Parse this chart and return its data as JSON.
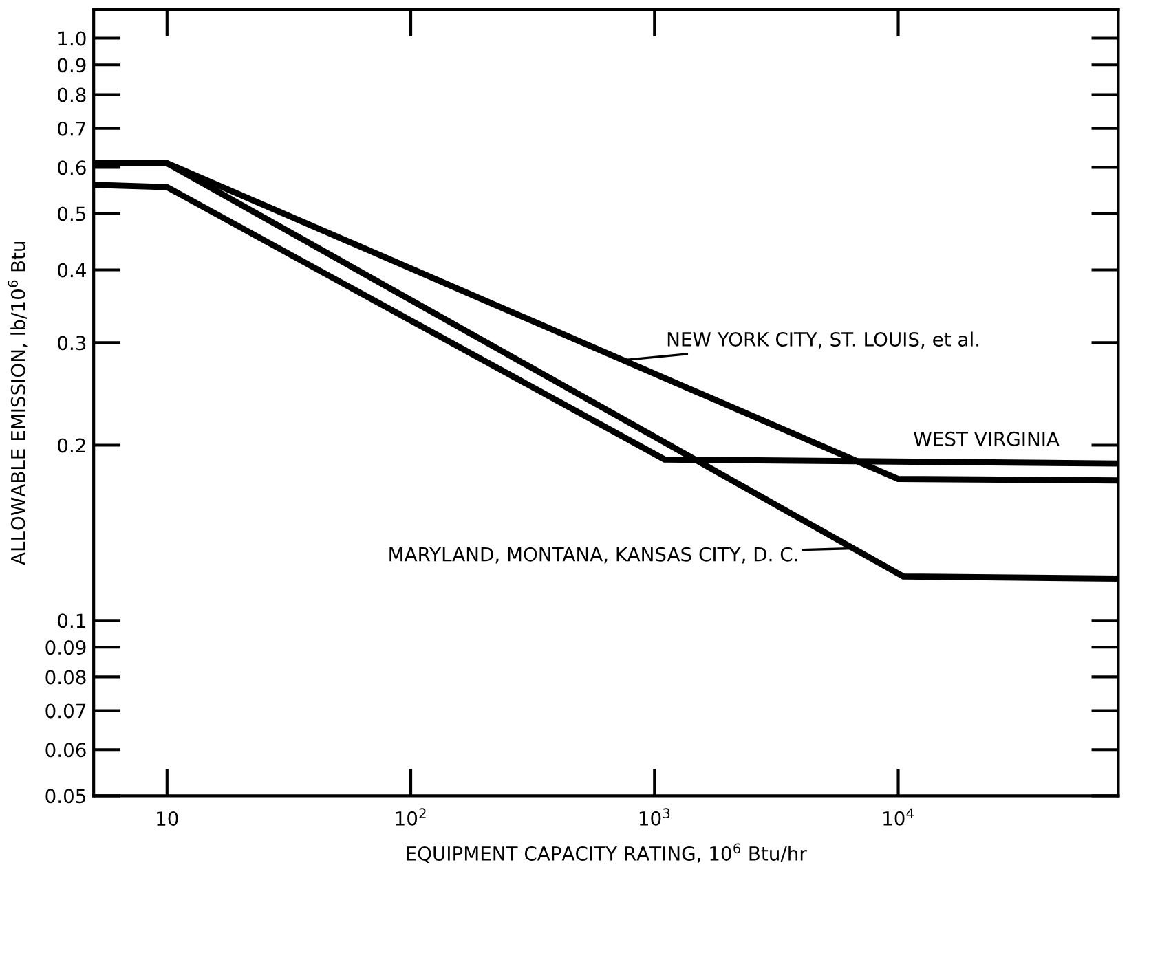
{
  "chart_data": {
    "type": "line",
    "xlabel": "EQUIPMENT CAPACITY RATING, 10$^{6}$ Btu/hr",
    "ylabel": "ALLOWABLE EMISSION, lb/10$^{6}$ Btu",
    "log": "xy",
    "grid": false,
    "marker": "none",
    "line_style": "solid",
    "xlim": [
      5,
      80000
    ],
    "ylim": [
      0.05,
      1.12
    ],
    "xticks": [
      10,
      {
        "value": 100,
        "label": "10$^{2}$"
      },
      {
        "value": 1000,
        "label": "10$^{3}$"
      },
      {
        "value": 10000,
        "label": "10$^{4}$"
      }
    ],
    "yticks": [
      0.05,
      0.06,
      0.07,
      0.08,
      0.09,
      0.1,
      0.2,
      0.3,
      0.4,
      0.5,
      0.6,
      0.7,
      0.8,
      0.9,
      {
        "value": 1,
        "label": "1.0"
      }
    ],
    "series": [
      {
        "color": "#000000",
        "x": [
          5,
          10,
          10000,
          80000
        ],
        "values": [
          0.61,
          0.61,
          0.175,
          0.174
        ]
      },
      {
        "color": "#000000",
        "x": [
          5,
          10,
          1100,
          80000
        ],
        "values": [
          0.56,
          0.555,
          0.189,
          0.186
        ]
      },
      {
        "color": "#000000",
        "x": [
          5,
          10,
          10500,
          80000
        ],
        "values": [
          0.61,
          0.61,
          0.119,
          0.118
        ]
      }
    ],
    "annotations": [
      {
        "text": "NEW YORK CITY, ST. LOUIS, et al.",
        "x": 750,
        "y": 0.28
      },
      {
        "text": "WEST VIRGINIA",
        "x": 23000,
        "y": 0.186
      },
      {
        "text": "MARYLAND, MONTANA, KANSAS CITY, D. C.",
        "x": 6500,
        "y": 0.133
      }
    ]
  }
}
